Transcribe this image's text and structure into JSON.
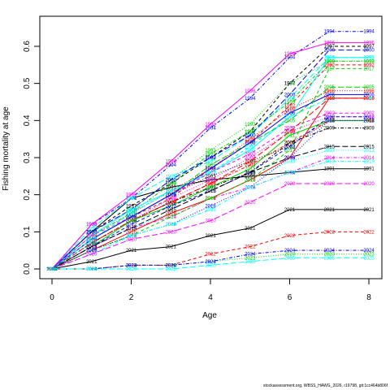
{
  "chart_data": {
    "type": "line",
    "title": "",
    "xlabel": "Age",
    "ylabel": "Fishing mortality at age",
    "xlim": [
      0,
      8
    ],
    "ylim": [
      0,
      0.6
    ],
    "x": [
      0,
      1,
      2,
      3,
      4,
      5,
      6,
      7,
      8
    ],
    "xticks": [
      0,
      2,
      4,
      6,
      8
    ],
    "yticks": [
      0.0,
      0.1,
      0.2,
      0.3,
      0.4,
      0.5,
      0.6
    ],
    "xtick_labels": [
      "0",
      "2",
      "4",
      "6",
      "8"
    ],
    "ytick_labels": [
      "0.0",
      "0.1",
      "0.2",
      "0.3",
      "0.4",
      "0.5",
      "0.6"
    ],
    "grid": false,
    "legend": "none",
    "series": [
      {
        "name": "1991",
        "color": "#000000",
        "dash": "solid",
        "values": [
          0.0,
          0.1,
          0.19,
          0.22,
          0.24,
          0.25,
          0.26,
          0.27,
          0.27
        ]
      },
      {
        "name": "1992",
        "color": "#FF0000",
        "dash": "dashed",
        "values": [
          0.0,
          0.08,
          0.14,
          0.19,
          0.27,
          0.34,
          0.44,
          0.55,
          0.55
        ]
      },
      {
        "name": "1993",
        "color": "#00CD00",
        "dash": "dotted",
        "values": [
          0.0,
          0.1,
          0.16,
          0.24,
          0.32,
          0.39,
          0.5,
          0.56,
          0.56
        ]
      },
      {
        "name": "1994",
        "color": "#0000FF",
        "dash": "dotdash",
        "values": [
          0.0,
          0.12,
          0.19,
          0.28,
          0.38,
          0.46,
          0.57,
          0.64,
          0.64
        ]
      },
      {
        "name": "1995",
        "color": "#00FFFF",
        "dash": "longdash",
        "values": [
          0.0,
          0.11,
          0.19,
          0.25,
          0.29,
          0.36,
          0.46,
          0.57,
          0.57
        ]
      },
      {
        "name": "1996",
        "color": "#FF00FF",
        "dash": "solid",
        "values": [
          0.0,
          0.12,
          0.2,
          0.29,
          0.39,
          0.48,
          0.58,
          0.61,
          0.61
        ]
      },
      {
        "name": "1997",
        "color": "#000000",
        "dash": "dashed",
        "values": [
          0.0,
          0.1,
          0.17,
          0.23,
          0.3,
          0.37,
          0.5,
          0.6,
          0.6
        ]
      },
      {
        "name": "1998",
        "color": "#FF0000",
        "dash": "dotted",
        "values": [
          0.0,
          0.09,
          0.15,
          0.21,
          0.27,
          0.35,
          0.43,
          0.48,
          0.48
        ]
      },
      {
        "name": "1999",
        "color": "#00CD00",
        "dash": "dotdash",
        "values": [
          0.0,
          0.09,
          0.15,
          0.23,
          0.31,
          0.37,
          0.45,
          0.56,
          0.56
        ]
      },
      {
        "name": "2000",
        "color": "#0000FF",
        "dash": "longdash",
        "values": [
          0.0,
          0.1,
          0.16,
          0.24,
          0.3,
          0.36,
          0.47,
          0.59,
          0.59
        ]
      },
      {
        "name": "2001",
        "color": "#00FFFF",
        "dash": "solid",
        "values": [
          0.0,
          0.09,
          0.16,
          0.21,
          0.26,
          0.32,
          0.41,
          0.57,
          0.57
        ]
      },
      {
        "name": "2002",
        "color": "#FF00FF",
        "dash": "dashed",
        "values": [
          0.0,
          0.09,
          0.14,
          0.2,
          0.26,
          0.31,
          0.38,
          0.42,
          0.42
        ]
      },
      {
        "name": "2003",
        "color": "#000000",
        "dash": "dotted",
        "values": [
          0.0,
          0.08,
          0.14,
          0.2,
          0.25,
          0.29,
          0.33,
          0.4,
          0.4
        ]
      },
      {
        "name": "2004",
        "color": "#FF0000",
        "dash": "dotdash",
        "values": [
          0.0,
          0.07,
          0.13,
          0.18,
          0.23,
          0.28,
          0.34,
          0.4,
          0.4
        ]
      },
      {
        "name": "2005",
        "color": "#00CD00",
        "dash": "longdash",
        "values": [
          0.0,
          0.08,
          0.14,
          0.2,
          0.28,
          0.34,
          0.4,
          0.49,
          0.49
        ]
      },
      {
        "name": "2006",
        "color": "#0000FF",
        "dash": "solid",
        "values": [
          0.0,
          0.08,
          0.14,
          0.2,
          0.27,
          0.34,
          0.42,
          0.47,
          0.47
        ]
      },
      {
        "name": "2007",
        "color": "#00FFFF",
        "dash": "dashed",
        "values": [
          0.0,
          0.08,
          0.15,
          0.21,
          0.26,
          0.33,
          0.41,
          0.46,
          0.46
        ]
      },
      {
        "name": "2008",
        "color": "#FF00FF",
        "dash": "dotted",
        "values": [
          0.0,
          0.07,
          0.13,
          0.19,
          0.24,
          0.3,
          0.37,
          0.41,
          0.41
        ]
      },
      {
        "name": "2009",
        "color": "#000000",
        "dash": "dotdash",
        "values": [
          0.0,
          0.07,
          0.13,
          0.18,
          0.22,
          0.26,
          0.34,
          0.38,
          0.38
        ]
      },
      {
        "name": "2010",
        "color": "#FF0000",
        "dash": "longdash",
        "values": [
          0.0,
          0.07,
          0.13,
          0.18,
          0.23,
          0.29,
          0.37,
          0.46,
          0.46
        ]
      },
      {
        "name": "2011",
        "color": "#00CD00",
        "dash": "solid",
        "values": [
          0.0,
          0.06,
          0.13,
          0.17,
          0.22,
          0.27,
          0.36,
          0.4,
          0.4
        ]
      },
      {
        "name": "2012",
        "color": "#0000FF",
        "dash": "dashed",
        "values": [
          0.0,
          0.06,
          0.12,
          0.17,
          0.21,
          0.26,
          0.33,
          0.41,
          0.41
        ]
      },
      {
        "name": "2013",
        "color": "#00FFFF",
        "dash": "dotted",
        "values": [
          0.0,
          0.07,
          0.11,
          0.15,
          0.19,
          0.24,
          0.29,
          0.32,
          0.32
        ]
      },
      {
        "name": "2014",
        "color": "#FF00FF",
        "dash": "dotdash",
        "values": [
          0.0,
          0.06,
          0.11,
          0.14,
          0.19,
          0.22,
          0.26,
          0.3,
          0.3
        ]
      },
      {
        "name": "2015",
        "color": "#000000",
        "dash": "longdash",
        "values": [
          0.0,
          0.06,
          0.11,
          0.16,
          0.21,
          0.26,
          0.3,
          0.33,
          0.33
        ]
      },
      {
        "name": "2016",
        "color": "#FF0000",
        "dash": "solid",
        "values": [
          0.0,
          0.05,
          0.1,
          0.15,
          0.19,
          0.24,
          0.3,
          0.46,
          0.46
        ]
      },
      {
        "name": "2017",
        "color": "#00CD00",
        "dash": "dashed",
        "values": [
          0.0,
          0.05,
          0.09,
          0.14,
          0.19,
          0.24,
          0.32,
          0.54,
          0.54
        ]
      },
      {
        "name": "2018",
        "color": "#0000FF",
        "dash": "dotted",
        "values": [
          0.0,
          0.05,
          0.09,
          0.12,
          0.17,
          0.22,
          0.3,
          0.4,
          0.4
        ]
      },
      {
        "name": "2019",
        "color": "#00FFFF",
        "dash": "dotdash",
        "values": [
          0.0,
          0.04,
          0.09,
          0.12,
          0.16,
          0.22,
          0.26,
          0.29,
          0.29
        ]
      },
      {
        "name": "2020",
        "color": "#FF00FF",
        "dash": "longdash",
        "values": [
          0.0,
          0.04,
          0.08,
          0.1,
          0.13,
          0.18,
          0.23,
          0.23,
          0.23
        ]
      },
      {
        "name": "2021",
        "color": "#000000",
        "dash": "solid",
        "values": [
          0.0,
          0.02,
          0.05,
          0.06,
          0.09,
          0.11,
          0.16,
          0.16,
          0.16
        ]
      },
      {
        "name": "2022",
        "color": "#FF0000",
        "dash": "dashed",
        "values": [
          0.0,
          0.0,
          0.01,
          0.01,
          0.04,
          0.06,
          0.09,
          0.1,
          0.1
        ]
      },
      {
        "name": "2023",
        "color": "#00CD00",
        "dash": "dotted",
        "values": [
          0.0,
          0.0,
          0.01,
          0.01,
          0.02,
          0.03,
          0.04,
          0.04,
          0.04
        ]
      },
      {
        "name": "2024",
        "color": "#0000FF",
        "dash": "dotdash",
        "values": [
          0.0,
          0.0,
          0.01,
          0.01,
          0.02,
          0.04,
          0.05,
          0.05,
          0.05
        ]
      },
      {
        "name": "2025",
        "color": "#00FFFF",
        "dash": "longdash",
        "values": [
          0.0,
          0.0,
          0.0,
          0.0,
          0.01,
          0.02,
          0.03,
          0.03,
          0.03
        ]
      }
    ],
    "footer": "stockassessment.org, WBSS_HAWG_2026, r19798, git:1cc464b806f"
  }
}
